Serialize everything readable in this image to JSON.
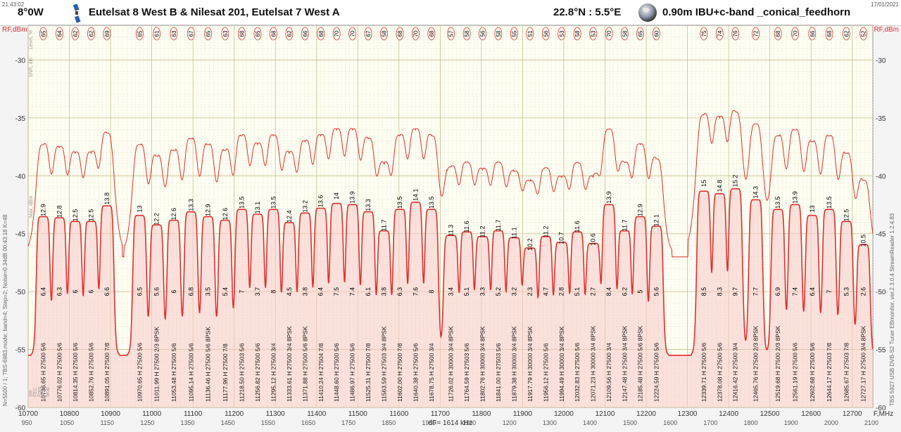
{
  "header": {
    "time": "21:43:02",
    "date": "17/01/2021",
    "orbital_position": "8°0W",
    "satellites": "Eutelsat 8 West B & Nilesat 201, Eutelsat 7 West A",
    "location": "22.8°N : 5.5°E",
    "dish": "0.90m IBU+c-band _conical_feedhorn"
  },
  "side_labels": {
    "left_info": "N=5500 / 1; TBS-6983 mode; band=4; Step=2; Noise=0.34dB   00:43:18  K=48",
    "right_info": "TBS 5927 USB DVB-S2 Tuner   EBmonitor, ver.2.3.0.4   StreamReader 1.2.4.83",
    "row_labels": [
      "Level, %",
      "SNR, dB",
      "Max, dBm",
      "SR",
      "FEC",
      "Freq",
      "Pol",
      "Mod"
    ]
  },
  "icons": {
    "satellite": "satellite-icon",
    "globe": "globe-icon"
  },
  "colors": {
    "accent": "#e03030",
    "fill": "#f8c8c8",
    "grid": "#d8cfa8",
    "plot_bg": "#fffef3"
  },
  "chart_data": {
    "type": "line",
    "title": "Eutelsat 8 West B & Nilesat 201, Eutelsat 7 West A",
    "ylabel_left": "RF,dBm",
    "ylabel_right": "RF,dBm",
    "xlabel": "F,MHz",
    "ylim": [
      -60,
      -27
    ],
    "xlim": [
      10700,
      12750
    ],
    "yticks": [
      -30,
      -35,
      -40,
      -45,
      -50,
      -55,
      -60
    ],
    "xticks": [
      10700,
      10800,
      10900,
      11000,
      11100,
      11200,
      11300,
      11400,
      11500,
      11600,
      11700,
      11800,
      11900,
      12000,
      12100,
      12200,
      12300,
      12400,
      12500,
      12600,
      12700
    ],
    "if_ticks": [
      "950",
      "1050",
      "1150",
      "1250",
      "1350",
      "1450",
      "1550",
      "1650",
      "1750",
      "1850",
      "1950",
      "1100",
      "1200",
      "1300",
      "1400",
      "1500",
      "1600",
      "1700",
      "1800",
      "1900",
      "2000",
      "2100"
    ],
    "resolution_label": "dF= 1614 kHz",
    "transponders": [
      {
        "freq": 10736.65,
        "pol": "H",
        "sr": 27500,
        "fec": "5/6",
        "mod": "",
        "level": 65,
        "snr": 12.9,
        "low": 6.4
      },
      {
        "freq": 10776.02,
        "pol": "H",
        "sr": 27500,
        "fec": "5/6",
        "mod": "",
        "level": 64,
        "snr": 12.8,
        "low": 6.3
      },
      {
        "freq": 10814.35,
        "pol": "H",
        "sr": 27500,
        "fec": "5/6",
        "mod": "",
        "level": 62,
        "snr": 12.5,
        "low": 6
      },
      {
        "freq": 10852.76,
        "pol": "H",
        "sr": 27500,
        "fec": "5/6",
        "mod": "",
        "level": 62,
        "snr": 12.5,
        "low": 6
      },
      {
        "freq": 10891.05,
        "pol": "H",
        "sr": 27500,
        "fec": "7/8",
        "mod": "",
        "level": 69,
        "snr": 13.8,
        "low": 6.6
      },
      {
        "freq": 10970.65,
        "pol": "H",
        "sr": 27500,
        "fec": "5/6",
        "mod": "",
        "level": 65,
        "snr": 13,
        "low": 6.5
      },
      {
        "freq": 11011.99,
        "pol": "H",
        "sr": 27500,
        "fec": "2/3",
        "mod": "8PSK",
        "level": 61,
        "snr": 12.2,
        "low": 5.6
      },
      {
        "freq": 11053.48,
        "pol": "H",
        "sr": 27500,
        "fec": "5/6",
        "mod": "",
        "level": 63,
        "snr": 12.6,
        "low": 6
      },
      {
        "freq": 11095.14,
        "pol": "H",
        "sr": 27500,
        "fec": "5/6",
        "mod": "",
        "level": 67,
        "snr": 13.3,
        "low": 6.8
      },
      {
        "freq": 11136.46,
        "pol": "H",
        "sr": 27500,
        "fec": "5/6",
        "mod": "8PSK",
        "level": 65,
        "snr": 12.9,
        "low": 3.5
      },
      {
        "freq": 11177.96,
        "pol": "H",
        "sr": 27500,
        "fec": "7/8",
        "mod": "",
        "level": 63,
        "snr": 12.6,
        "low": 5.4
      },
      {
        "freq": 11218.5,
        "pol": "H",
        "sr": 27503,
        "fec": "5/6",
        "mod": "",
        "level": 68,
        "snr": 13.5,
        "low": 7
      },
      {
        "freq": 11256.82,
        "pol": "H",
        "sr": 27500,
        "fec": "5/6",
        "mod": "",
        "level": 65,
        "snr": 13.1,
        "low": 3.7
      },
      {
        "freq": 11295.12,
        "pol": "H",
        "sr": 27500,
        "fec": "3/4",
        "mod": "",
        "level": 68,
        "snr": 13.5,
        "low": 8
      },
      {
        "freq": 11333.61,
        "pol": "H",
        "sr": 27500,
        "fec": "3/4",
        "mod": "8PSK",
        "level": 62,
        "snr": 12.4,
        "low": 4.5
      },
      {
        "freq": 11371.88,
        "pol": "H",
        "sr": 27500,
        "fec": "5/6",
        "mod": "8PSK",
        "level": 66,
        "snr": 13.2,
        "low": 3.8
      },
      {
        "freq": 11410.24,
        "pol": "H",
        "sr": 27504,
        "fec": "7/8",
        "mod": "",
        "level": 68,
        "snr": 13.6,
        "low": 6.4
      },
      {
        "freq": 11448.6,
        "pol": "H",
        "sr": 27500,
        "fec": "5/6",
        "mod": "",
        "level": 70,
        "snr": 14,
        "low": 7.5
      },
      {
        "freq": 11486.97,
        "pol": "H",
        "sr": 27500,
        "fec": "5/6",
        "mod": "",
        "level": 70,
        "snr": 13.9,
        "low": 7.4
      },
      {
        "freq": 11525.31,
        "pol": "H",
        "sr": 27500,
        "fec": "7/8",
        "mod": "",
        "level": 67,
        "snr": 13.3,
        "low": 6.1
      },
      {
        "freq": 11563.59,
        "pol": "H",
        "sr": 27503,
        "fec": "3/4",
        "mod": "8PSK",
        "level": 58,
        "snr": 11.7,
        "low": 3.8
      },
      {
        "freq": 11602.0,
        "pol": "H",
        "sr": 27500,
        "fec": "7/8",
        "mod": "",
        "level": 68,
        "snr": 13.5,
        "low": 6.3
      },
      {
        "freq": 11640.38,
        "pol": "H",
        "sr": 27500,
        "fec": "5/6",
        "mod": "",
        "level": 70,
        "snr": 14.1,
        "low": 7.6
      },
      {
        "freq": 11678.75,
        "pol": "H",
        "sr": 27500,
        "fec": "3/4",
        "mod": "",
        "level": 68,
        "snr": 13.5,
        "low": 8
      },
      {
        "freq": 11726.02,
        "pol": "H",
        "sr": 30000,
        "fec": "3/4",
        "mod": "8PSK",
        "level": 57,
        "snr": 11.3,
        "low": 3.4
      },
      {
        "freq": 11764.59,
        "pol": "H",
        "sr": 27503,
        "fec": "5/6",
        "mod": "",
        "level": 58,
        "snr": 11.6,
        "low": 5.1
      },
      {
        "freq": 11802.76,
        "pol": "H",
        "sr": 30000,
        "fec": "3/4",
        "mod": "8PSK",
        "level": 56,
        "snr": 11.2,
        "low": 3.3
      },
      {
        "freq": 11841.0,
        "pol": "H",
        "sr": 27503,
        "fec": "5/6",
        "mod": "",
        "level": 58,
        "snr": 11.7,
        "low": 5.2
      },
      {
        "freq": 11879.38,
        "pol": "H",
        "sr": 30000,
        "fec": "3/4",
        "mod": "8PSK",
        "level": 55,
        "snr": 11.1,
        "low": 3.2
      },
      {
        "freq": 11917.79,
        "pol": "H",
        "sr": 30000,
        "fec": "3/4",
        "mod": "8PSK",
        "level": 51,
        "snr": 10.2,
        "low": 2.3
      },
      {
        "freq": 11956.12,
        "pol": "H",
        "sr": 27500,
        "fec": "5/6",
        "mod": "",
        "level": 56,
        "snr": 11.2,
        "low": 4.7
      },
      {
        "freq": 11994.49,
        "pol": "H",
        "sr": 30000,
        "fec": "3/4",
        "mod": "8PSK",
        "level": 53,
        "snr": 10.7,
        "low": 2.8
      },
      {
        "freq": 12032.83,
        "pol": "H",
        "sr": 27500,
        "fec": "5/6",
        "mod": "",
        "level": 58,
        "snr": 11.6,
        "low": 5.1
      },
      {
        "freq": 12071.23,
        "pol": "H",
        "sr": 30000,
        "fec": "3/4",
        "mod": "8PSK",
        "level": 53,
        "snr": 10.6,
        "low": 2.7
      },
      {
        "freq": 12109.56,
        "pol": "H",
        "sr": 27500,
        "fec": "3/4",
        "mod": "",
        "level": 70,
        "snr": 13.9,
        "low": 8.4
      },
      {
        "freq": 12147.48,
        "pol": "H",
        "sr": 27500,
        "fec": "3/4",
        "mod": "8PSK",
        "level": 58,
        "snr": 11.7,
        "low": 6.2
      },
      {
        "freq": 12185.48,
        "pol": "H",
        "sr": 27500,
        "fec": "5/6",
        "mod": "8PSK",
        "level": 65,
        "snr": 12.9,
        "low": 5
      },
      {
        "freq": 12224.59,
        "pol": "H",
        "sr": 27500,
        "fec": "5/6",
        "mod": "",
        "level": 60,
        "snr": 12.1,
        "low": 5.6
      },
      {
        "freq": 12339.71,
        "pol": "H",
        "sr": 27500,
        "fec": "5/6",
        "mod": "",
        "level": 75,
        "snr": 15,
        "low": 8.5
      },
      {
        "freq": 12378.08,
        "pol": "H",
        "sr": 27500,
        "fec": "5/6",
        "mod": "",
        "level": 74,
        "snr": 14.8,
        "low": 8.3
      },
      {
        "freq": 12416.42,
        "pol": "H",
        "sr": 27500,
        "fec": "3/4",
        "mod": "",
        "level": 76,
        "snr": 15.2,
        "low": 9.7
      },
      {
        "freq": 12465.76,
        "pol": "H",
        "sr": 27500,
        "fec": "2/3",
        "mod": "8PSK",
        "level": 72,
        "snr": 14.3,
        "low": 7.7
      },
      {
        "freq": 12519.68,
        "pol": "H",
        "sr": 27500,
        "fec": "2/3",
        "mod": "8PSK",
        "level": 68,
        "snr": 13.5,
        "low": 6.9
      },
      {
        "freq": 12561.19,
        "pol": "H",
        "sr": 27500,
        "fec": "5/6",
        "mod": "",
        "level": 70,
        "snr": 13.9,
        "low": 7.4
      },
      {
        "freq": 12602.68,
        "pol": "H",
        "sr": 27500,
        "fec": "5/6",
        "mod": "",
        "level": 66,
        "snr": 13,
        "low": 6.4
      },
      {
        "freq": 12644.17,
        "pol": "H",
        "sr": 27503,
        "fec": "7/8",
        "mod": "",
        "level": 68,
        "snr": 13.5,
        "low": 7
      },
      {
        "freq": 12685.67,
        "pol": "H",
        "sr": 27503,
        "fec": "7/8",
        "mod": "",
        "level": 62,
        "snr": 12.5,
        "low": 5.3
      },
      {
        "freq": 12727.17,
        "pol": "H",
        "sr": 27500,
        "fec": "3/4",
        "mod": "8PSK",
        "level": 52,
        "snr": 10.5,
        "low": 2.6
      }
    ]
  }
}
